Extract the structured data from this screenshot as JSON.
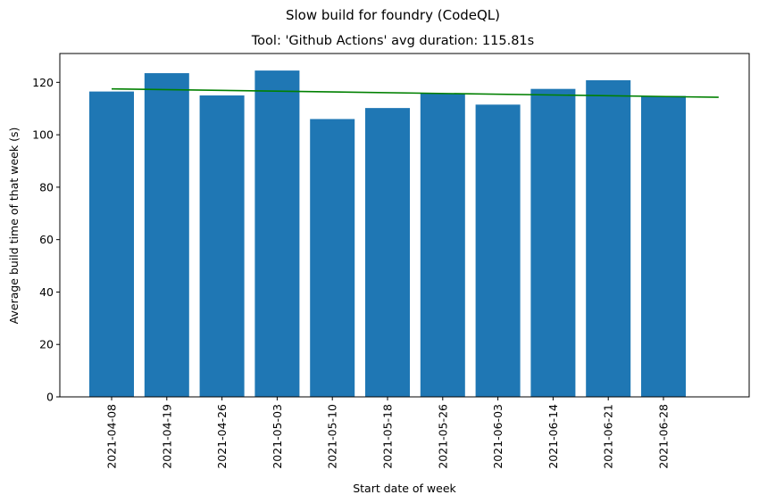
{
  "chart_data": {
    "type": "bar",
    "suptitle": "Slow build for foundry (CodeQL)",
    "title": "Tool: 'Github Actions' avg duration: 115.81s",
    "xlabel": "Start date of week",
    "ylabel": "Average build time of that week (s)",
    "categories": [
      "2021-04-08",
      "2021-04-19",
      "2021-04-26",
      "2021-05-03",
      "2021-05-10",
      "2021-05-18",
      "2021-05-26",
      "2021-06-03",
      "2021-06-14",
      "2021-06-21",
      "2021-06-28"
    ],
    "values": [
      116.5,
      123.5,
      115.0,
      124.5,
      106.0,
      110.2,
      115.8,
      111.5,
      117.5,
      120.8,
      114.8
    ],
    "ylim": [
      0,
      131
    ],
    "yticks": [
      0,
      20,
      40,
      60,
      80,
      100,
      120
    ],
    "bar_color": "#1f77b4",
    "trend_line": {
      "color": "#008000",
      "start": 117.5,
      "end": 114.3
    },
    "grid": false
  }
}
